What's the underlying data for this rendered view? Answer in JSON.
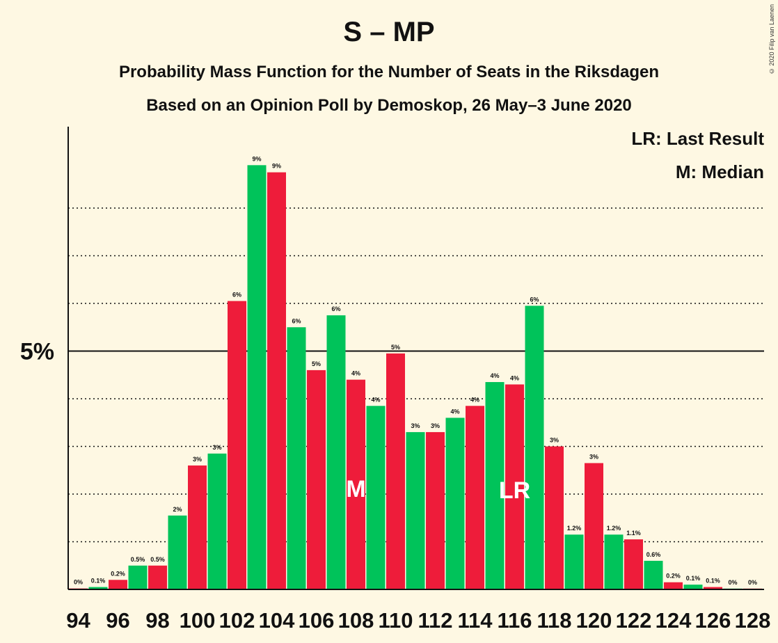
{
  "header": {
    "title": "S – MP",
    "subtitle1": "Probability Mass Function for the Number of Seats in the Riksdagen",
    "subtitle2": "Based on an Opinion Poll by Demoskop, 26 May–3 June 2020",
    "copyright": "© 2020 Filip van Laenen"
  },
  "legend": {
    "lr": "LR: Last Result",
    "m": "M: Median"
  },
  "colors": {
    "background": "#fef8e3",
    "green": "#00c35a",
    "red": "#ee1c3a"
  },
  "chart_data": {
    "type": "bar",
    "title": "S – MP",
    "xlabel": "",
    "ylabel": "",
    "ylim": [
      0,
      9.6
    ],
    "y_tick_label": "5%",
    "grid": "dotted horizontal lines every 1%, solid line at 5%",
    "categories": [
      94,
      95,
      96,
      97,
      98,
      99,
      100,
      101,
      102,
      103,
      104,
      105,
      106,
      107,
      108,
      109,
      110,
      111,
      112,
      113,
      114,
      115,
      116,
      117,
      118,
      119,
      120,
      121,
      122,
      123,
      124,
      125,
      126,
      127,
      128
    ],
    "x_tick_labels": [
      "94",
      "96",
      "98",
      "100",
      "102",
      "104",
      "106",
      "108",
      "110",
      "112",
      "114",
      "116",
      "118",
      "120",
      "122",
      "124",
      "126",
      "128"
    ],
    "values": [
      0.02,
      0.05,
      0.2,
      0.5,
      0.5,
      1.55,
      2.6,
      2.85,
      6.05,
      8.9,
      8.75,
      5.5,
      4.6,
      5.75,
      4.4,
      3.85,
      4.95,
      3.3,
      3.3,
      3.6,
      3.85,
      4.35,
      4.3,
      5.95,
      3.0,
      1.15,
      2.65,
      1.15,
      1.05,
      0.6,
      0.15,
      0.1,
      0.05,
      0.0,
      0.0
    ],
    "data_labels": [
      "0%",
      "0.1%",
      "0.2%",
      "0.5%",
      "0.5%",
      "2%",
      "3%",
      "3%",
      "6%",
      "9%",
      "9%",
      "6%",
      "5%",
      "6%",
      "4%",
      "4%",
      "5%",
      "3%",
      "3%",
      "4%",
      "4%",
      "4%",
      "4%",
      "6%",
      "3%",
      "1.2%",
      "3%",
      "1.2%",
      "1.1%",
      "0.6%",
      "0.2%",
      "0.1%",
      "0.1%",
      "0%",
      "0%"
    ],
    "median": 108,
    "median_label": "M",
    "last_result": 116,
    "last_result_label": "LR"
  }
}
